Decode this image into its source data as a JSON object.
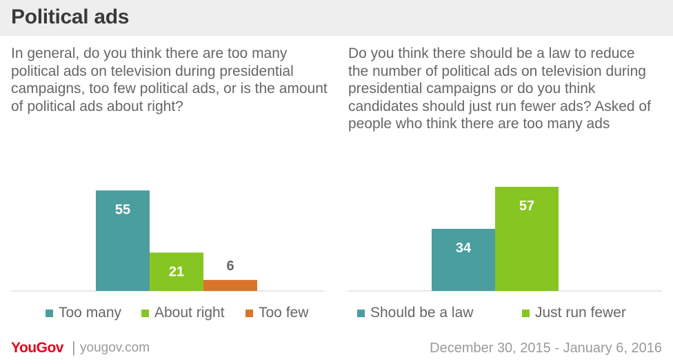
{
  "title": "Political ads",
  "questions": {
    "left": "In general, do you think there are too many political ads on television during presidential campaigns, too few political ads, or is the amount of political ads about right?",
    "right": "Do you think there should be a law to reduce the number of political ads on television during presidential campaigns or do you think candidates should just run fewer ads? Asked of people who think there are too many ads"
  },
  "chart_data": [
    {
      "type": "bar",
      "categories": [
        "Too many",
        "About right",
        "Too few"
      ],
      "values": [
        55,
        21,
        6
      ],
      "colors": [
        "#4a9e9e",
        "#86c522",
        "#d9742a"
      ],
      "title": "",
      "xlabel": "",
      "ylabel": "",
      "ylim": [
        0,
        60
      ],
      "grid": false,
      "legend": "bottom"
    },
    {
      "type": "bar",
      "categories": [
        "Should be a law",
        "Just run fewer"
      ],
      "values": [
        34,
        57
      ],
      "colors": [
        "#4a9e9e",
        "#86c522"
      ],
      "title": "",
      "xlabel": "",
      "ylabel": "",
      "ylim": [
        0,
        60
      ],
      "grid": false,
      "legend": "bottom"
    }
  ],
  "footer": {
    "logo_you": "You",
    "logo_gov": "Gov",
    "separator": "|",
    "url": "yougov.com",
    "date_range": "December 30, 2015 - January 6, 2016"
  }
}
